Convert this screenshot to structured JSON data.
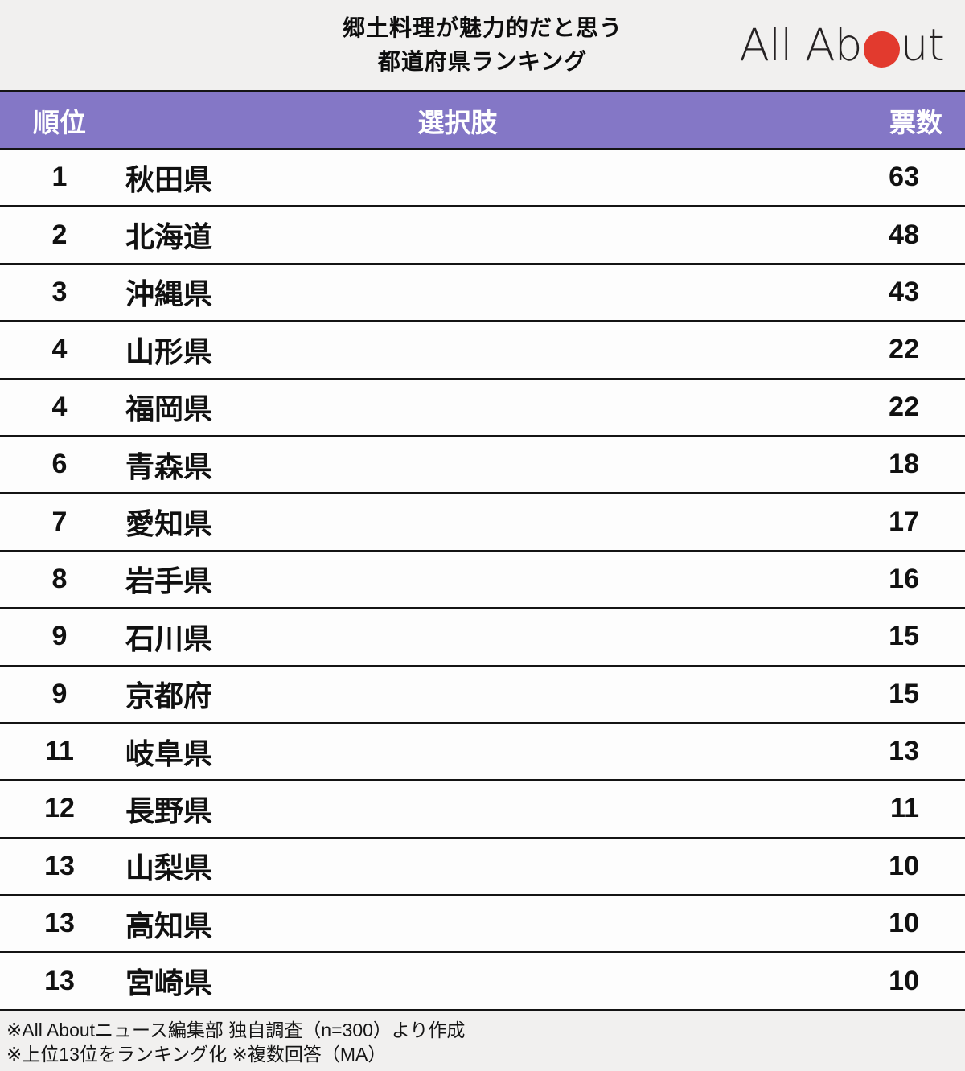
{
  "header": {
    "title_line1": "郷土料理が魅力的だと思う",
    "title_line2": "都道府県ランキング",
    "logo": {
      "text_left": "All Ab",
      "text_right": "ut",
      "circle_color": "#e23a2e"
    }
  },
  "table": {
    "header_bg": "#8477c6",
    "columns": {
      "rank": "順位",
      "choice": "選択肢",
      "votes": "票数"
    },
    "rows": [
      {
        "rank": "1",
        "name": "秋田県",
        "votes": "63"
      },
      {
        "rank": "2",
        "name": "北海道",
        "votes": "48"
      },
      {
        "rank": "3",
        "name": "沖縄県",
        "votes": "43"
      },
      {
        "rank": "4",
        "name": "山形県",
        "votes": "22"
      },
      {
        "rank": "4",
        "name": "福岡県",
        "votes": "22"
      },
      {
        "rank": "6",
        "name": "青森県",
        "votes": "18"
      },
      {
        "rank": "7",
        "name": "愛知県",
        "votes": "17"
      },
      {
        "rank": "8",
        "name": "岩手県",
        "votes": "16"
      },
      {
        "rank": "9",
        "name": "石川県",
        "votes": "15"
      },
      {
        "rank": "9",
        "name": "京都府",
        "votes": "15"
      },
      {
        "rank": "11",
        "name": "岐阜県",
        "votes": "13"
      },
      {
        "rank": "12",
        "name": "長野県",
        "votes": "11"
      },
      {
        "rank": "13",
        "name": "山梨県",
        "votes": "10"
      },
      {
        "rank": "13",
        "name": "高知県",
        "votes": "10"
      },
      {
        "rank": "13",
        "name": "宮崎県",
        "votes": "10"
      }
    ]
  },
  "footer": {
    "line1": "※All Aboutニュース編集部 独自調査（n=300）より作成",
    "line2": "※上位13位をランキング化 ※複数回答（MA）"
  },
  "chart_data": {
    "type": "table",
    "title": "郷土料理が魅力的だと思う都道府県ランキング",
    "columns": [
      "順位",
      "選択肢",
      "票数"
    ],
    "categories": [
      "秋田県",
      "北海道",
      "沖縄県",
      "山形県",
      "福岡県",
      "青森県",
      "愛知県",
      "岩手県",
      "石川県",
      "京都府",
      "岐阜県",
      "長野県",
      "山梨県",
      "高知県",
      "宮崎県"
    ],
    "ranks": [
      1,
      2,
      3,
      4,
      4,
      6,
      7,
      8,
      9,
      9,
      11,
      12,
      13,
      13,
      13
    ],
    "values": [
      63,
      48,
      43,
      22,
      22,
      18,
      17,
      16,
      15,
      15,
      13,
      11,
      10,
      10,
      10
    ],
    "notes": [
      "※All Aboutニュース編集部 独自調査（n=300）より作成",
      "※上位13位をランキング化 ※複数回答（MA）"
    ],
    "accent_color": "#8477c6"
  }
}
